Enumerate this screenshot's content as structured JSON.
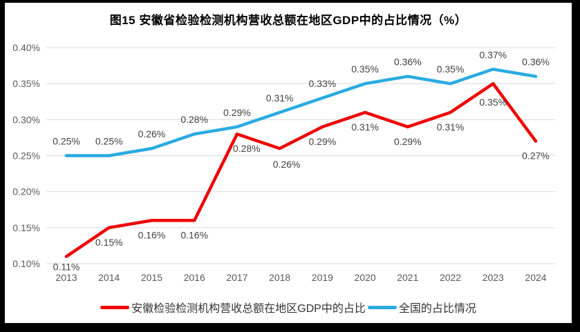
{
  "window": {
    "frame_color": "#000000",
    "background_color": "#ffffff"
  },
  "chart_data": {
    "type": "line",
    "title": "图15  安徽省检验检测机构营收总额在地区GDP中的占比情况（%）",
    "categories": [
      "2013",
      "2014",
      "2015",
      "2016",
      "2017",
      "2018",
      "2019",
      "2020",
      "2021",
      "2022",
      "2023",
      "2024"
    ],
    "series": [
      {
        "name": "安徽检验检测机构营收总额在地区GDP中的占比",
        "color": "#ee0000",
        "values": [
          0.11,
          0.15,
          0.16,
          0.16,
          0.28,
          0.26,
          0.29,
          0.31,
          0.29,
          0.31,
          0.35,
          0.27
        ],
        "labels": [
          "0.11%",
          "0.15%",
          "0.16%",
          "0.16%",
          "0.28%",
          "0.26%",
          "0.29%",
          "0.31%",
          "0.29%",
          "0.31%",
          "0.35%",
          "0.27%"
        ],
        "label_position": "below"
      },
      {
        "name": "全国的占比情况",
        "color": "#29abe2",
        "values": [
          0.25,
          0.25,
          0.26,
          0.28,
          0.29,
          0.31,
          0.33,
          0.35,
          0.36,
          0.35,
          0.37,
          0.36
        ],
        "labels": [
          "0.25%",
          "0.25%",
          "0.26%",
          "0.28%",
          "0.29%",
          "0.31%",
          "0.33%",
          "0.35%",
          "0.36%",
          "0.35%",
          "0.37%",
          "0.36%"
        ],
        "label_position": "above"
      }
    ],
    "xlabel": "",
    "ylabel": "",
    "ylim": [
      0.1,
      0.4
    ],
    "ytick_labels": [
      "0.40%",
      "0.35%",
      "0.30%",
      "0.25%",
      "0.20%",
      "0.15%",
      "0.10%"
    ],
    "ytick_values": [
      0.4,
      0.35,
      0.3,
      0.25,
      0.2,
      0.15,
      0.1
    ],
    "grid": true,
    "gridline_color": "#d9d9d9",
    "axis_text_color": "#595959",
    "data_label_color": "#404040",
    "legend_position": "bottom"
  }
}
